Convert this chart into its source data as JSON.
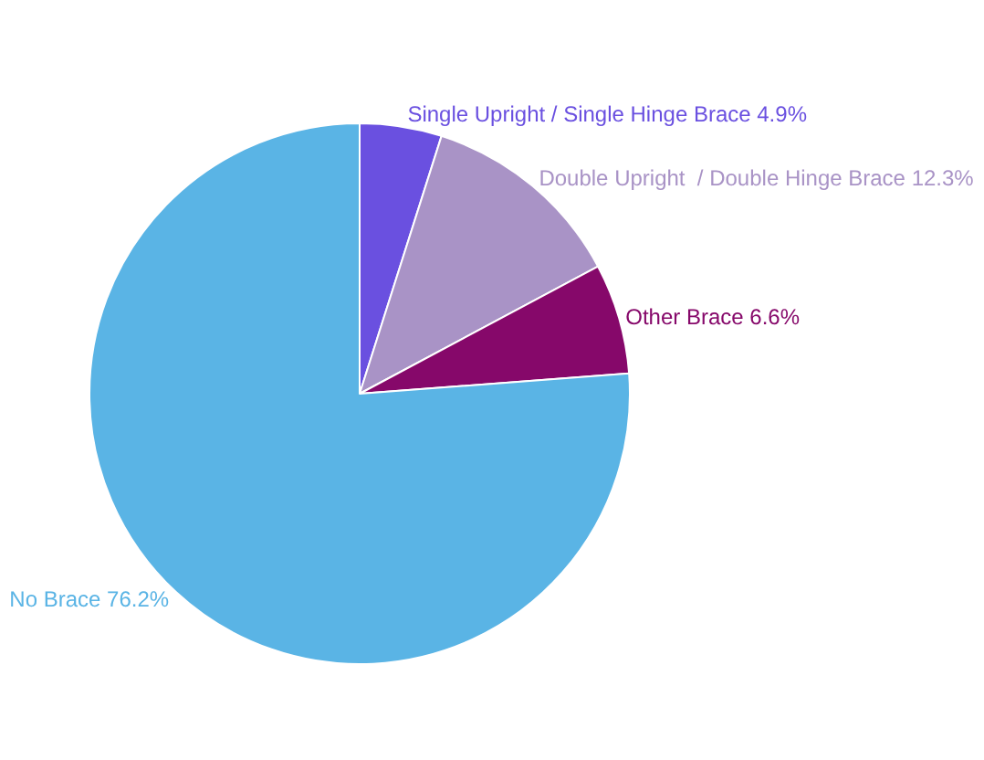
{
  "chart_data": {
    "type": "pie",
    "categories": [
      "Single Upright / Single Hinge Brace",
      "Double Upright  / Double Hinge Brace",
      "Other Brace",
      "No Brace"
    ],
    "values": [
      4.9,
      12.3,
      6.6,
      76.2
    ],
    "value_labels": [
      "4.9%",
      "12.3%",
      "6.6%",
      "76.2%"
    ],
    "colors": [
      "#6a50e0",
      "#a993c6",
      "#86086a",
      "#5ab4e5"
    ],
    "legend": false
  }
}
